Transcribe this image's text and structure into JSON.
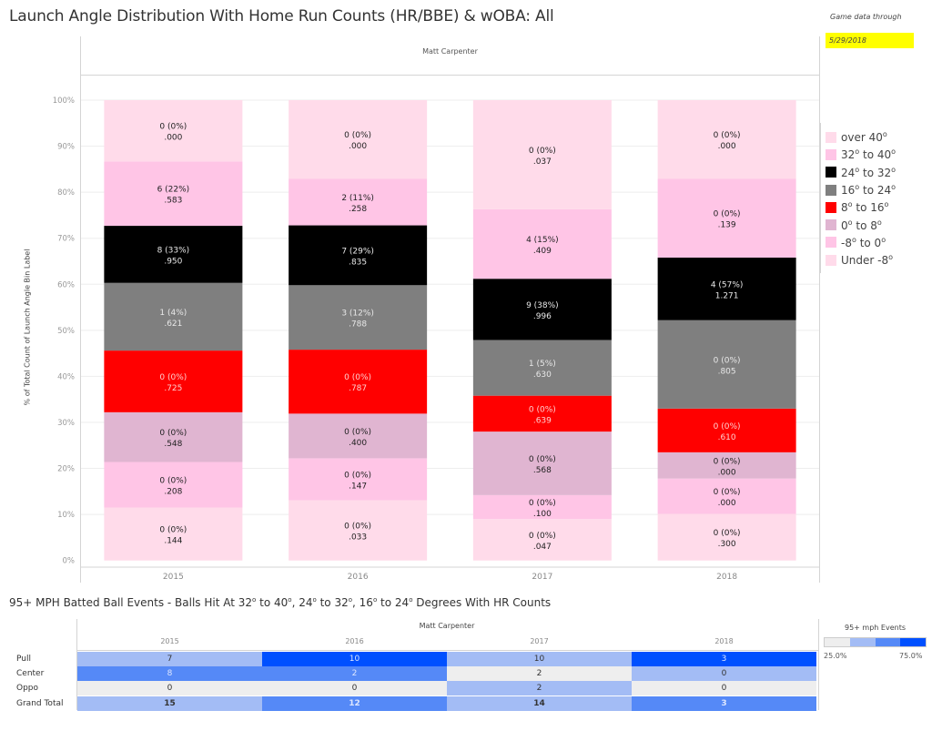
{
  "header": {
    "title": "Launch Angle Distribution With Home Run Counts (HR/BBE) & wOBA:  All",
    "game_data_label": "Game data through",
    "game_data_date": "5/29/2018"
  },
  "chart_data": {
    "type": "bar",
    "stacked": true,
    "title": "Launch Angle Distribution With Home Run Counts (HR/BBE) & wOBA:  All",
    "subtitle": "Matt Carpenter",
    "xlabel": "",
    "ylabel": "% of Total Count of Launch Angle Bin Label",
    "ylim": [
      0,
      100
    ],
    "yticks": [
      "0%",
      "10%",
      "20%",
      "30%",
      "40%",
      "50%",
      "60%",
      "70%",
      "80%",
      "90%",
      "100%"
    ],
    "grid": true,
    "legend_position": "right",
    "categories": [
      "2015",
      "2016",
      "2017",
      "2018"
    ],
    "series": [
      {
        "name": "Under -8°",
        "legend": "Under -8",
        "color": "#ffdbea",
        "text_color": "#222",
        "values": [
          11.5,
          13.1,
          9.0,
          10.1
        ],
        "labels": [
          [
            "0 (0%)",
            ".144"
          ],
          [
            "0 (0%)",
            ".033"
          ],
          [
            "0 (0%)",
            ".047"
          ],
          [
            "0 (0%)",
            ".300"
          ]
        ]
      },
      {
        "name": "-8° to 0°",
        "legend": "-8 to 0",
        "color": "#ffc5e6",
        "text_color": "#222",
        "values": [
          9.9,
          9.1,
          5.2,
          7.7
        ],
        "labels": [
          [
            "0 (0%)",
            ".208"
          ],
          [
            "0 (0%)",
            ".147"
          ],
          [
            "0 (0%)",
            ".100"
          ],
          [
            "0 (0%)",
            ".000"
          ]
        ]
      },
      {
        "name": "0° to 8°",
        "legend": "0 to 8",
        "color": "#e0b5d1",
        "text_color": "#222",
        "values": [
          10.8,
          9.7,
          13.8,
          5.7
        ],
        "labels": [
          [
            "0 (0%)",
            ".548"
          ],
          [
            "0 (0%)",
            ".400"
          ],
          [
            "0 (0%)",
            ".568"
          ],
          [
            "0 (0%)",
            ".000"
          ]
        ]
      },
      {
        "name": "8° to 16°",
        "legend": "8 to 16",
        "color": "#ff0000",
        "text_color": "#ffd0d0",
        "values": [
          13.4,
          13.9,
          7.8,
          9.5
        ],
        "labels": [
          [
            "0 (0%)",
            ".725"
          ],
          [
            "0 (0%)",
            ".787"
          ],
          [
            "0 (0%)",
            ".639"
          ],
          [
            "0 (0%)",
            ".610"
          ]
        ]
      },
      {
        "name": "16° to 24°",
        "legend": "16 to 24",
        "color": "#7f7f7f",
        "text_color": "#e8e8e8",
        "values": [
          14.7,
          14.0,
          12.1,
          19.2
        ],
        "labels": [
          [
            "1 (4%)",
            ".621"
          ],
          [
            "3 (12%)",
            ".788"
          ],
          [
            "1 (5%)",
            ".630"
          ],
          [
            "0 (0%)",
            ".805"
          ]
        ]
      },
      {
        "name": "24° to 32°",
        "legend": "24 to 32",
        "color": "#000000",
        "text_color": "#e8e8e8",
        "values": [
          12.4,
          13.0,
          13.3,
          13.6
        ],
        "labels": [
          [
            "8 (33%)",
            ".950"
          ],
          [
            "7 (29%)",
            ".835"
          ],
          [
            "9 (38%)",
            ".996"
          ],
          [
            "4 (57%)",
            "1.271"
          ]
        ]
      },
      {
        "name": "32° to 40°",
        "legend": "32 to 40",
        "color": "#ffc5e6",
        "text_color": "#222",
        "values": [
          14.0,
          10.1,
          15.1,
          17.1
        ],
        "labels": [
          [
            "6 (22%)",
            ".583"
          ],
          [
            "2 (11%)",
            ".258"
          ],
          [
            "4 (15%)",
            ".409"
          ],
          [
            "0 (0%)",
            ".139"
          ]
        ]
      },
      {
        "name": "over 40°",
        "legend": "over 40",
        "color": "#ffdbea",
        "text_color": "#222",
        "values": [
          13.3,
          17.1,
          23.7,
          17.1
        ],
        "labels": [
          [
            "0 (0%)",
            ".000"
          ],
          [
            "0 (0%)",
            ".000"
          ],
          [
            "0 (0%)",
            ".037"
          ],
          [
            "0 (0%)",
            ".000"
          ]
        ]
      }
    ]
  },
  "legend": {
    "items": [
      {
        "label": "over 40",
        "color": "#ffdbea"
      },
      {
        "label": "32",
        "label2": " to 40",
        "color": "#ffc5e6"
      },
      {
        "label": "24",
        "label2": " to 32",
        "color": "#000000"
      },
      {
        "label": "16",
        "label2": " to 24",
        "color": "#7f7f7f"
      },
      {
        "label": "8",
        "label2": " to 16",
        "color": "#ff0000"
      },
      {
        "label": "0",
        "label2": " to 8",
        "color": "#e0b5d1"
      },
      {
        "label": "-8",
        "label2": " to 0",
        "color": "#ffc5e6"
      },
      {
        "label": "Under -8",
        "color": "#ffdbea"
      }
    ]
  },
  "table": {
    "title_parts": [
      "95+ MPH Batted Ball Events - Balls Hit At 32",
      " to 40",
      ", 24",
      " to 32",
      ", 16",
      " to 24",
      " Degrees With HR Counts"
    ],
    "player": "Matt Carpenter",
    "years": [
      "2015",
      "2016",
      "2017",
      "2018"
    ],
    "rows": [
      {
        "label": "Pull",
        "values": [
          "7",
          "10",
          "10",
          "3"
        ],
        "shades": [
          1,
          3,
          1,
          3
        ]
      },
      {
        "label": "Center",
        "values": [
          "8",
          "2",
          "2",
          "0"
        ],
        "shades": [
          2,
          2,
          0,
          1
        ]
      },
      {
        "label": "Oppo",
        "values": [
          "0",
          "0",
          "2",
          "0"
        ],
        "shades": [
          0,
          0,
          1,
          0
        ]
      },
      {
        "label": "Grand Total",
        "values": [
          "15",
          "12",
          "14",
          "3"
        ],
        "shades": [
          1,
          2,
          1,
          2
        ]
      }
    ],
    "shade_colors": [
      "#eeeeee",
      "#a3bcf5",
      "#5589f7",
      "#0050ff"
    ],
    "gradient": {
      "title": "95+ mph Events",
      "min": "25.0%",
      "max": "75.0%"
    }
  }
}
